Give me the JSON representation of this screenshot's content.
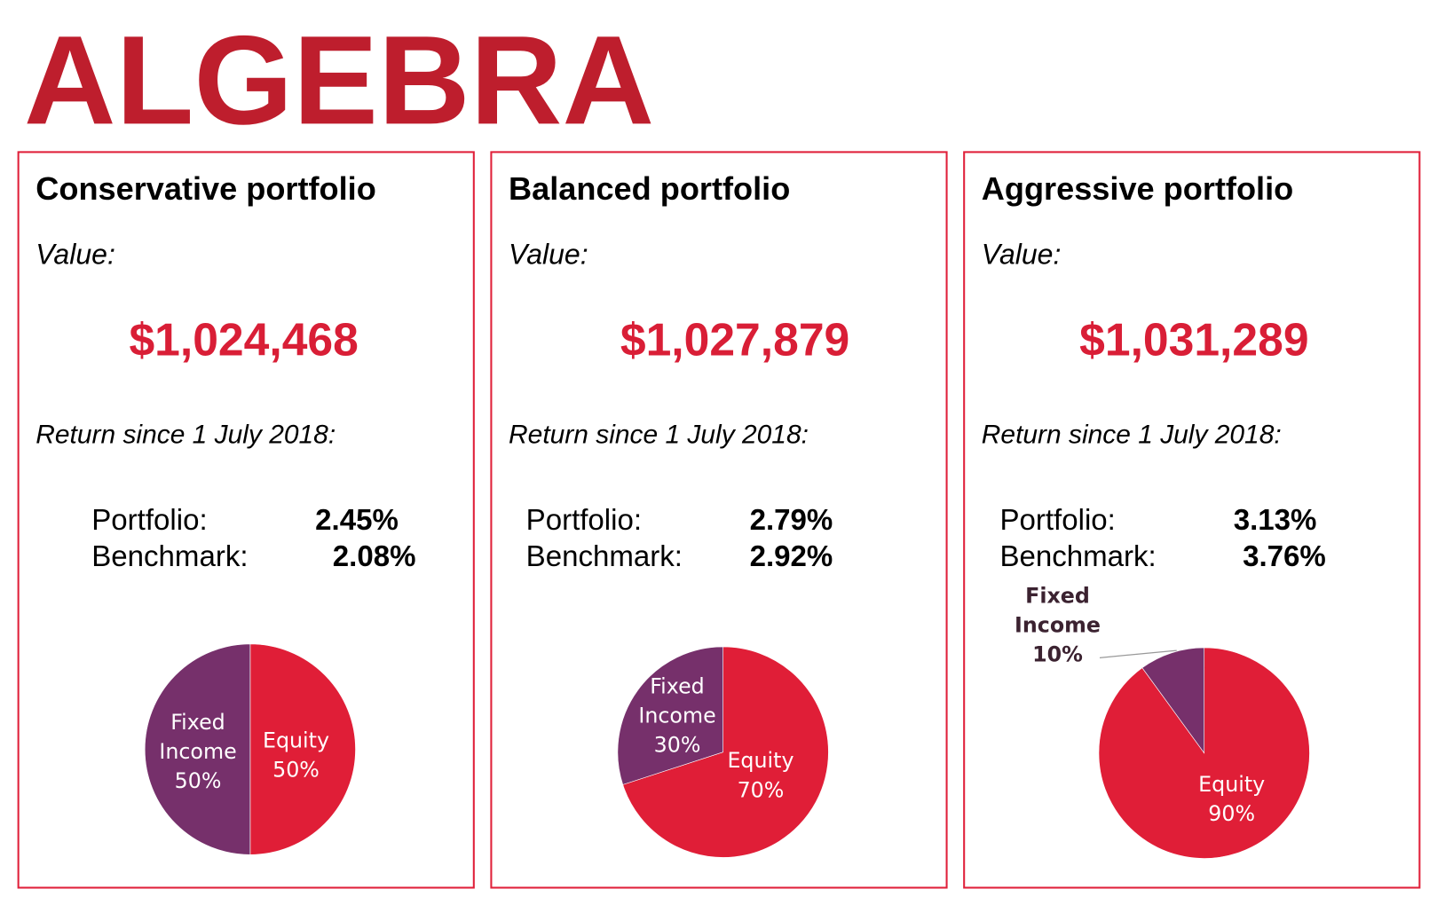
{
  "logo": {
    "text": "ALGEBRA",
    "color": "#BE1E2D"
  },
  "colors": {
    "equity": "#E01E37",
    "fixed_income": "#76306B",
    "border": "#E0203A",
    "amount": "#D91E36"
  },
  "portfolios": [
    {
      "title": "Conservative portfolio",
      "value_label": "Value:",
      "value": "$1,024,468",
      "return_label": "Return since 1 July 2018:",
      "portfolio_label": "Portfolio:",
      "portfolio_return": "2.45%",
      "benchmark_label": "Benchmark:",
      "benchmark_return": "2.08%"
    },
    {
      "title": "Balanced portfolio",
      "value_label": "Value:",
      "value": "$1,027,879",
      "return_label": "Return since 1 July 2018:",
      "portfolio_label": "Portfolio:",
      "portfolio_return": "2.79%",
      "benchmark_label": "Benchmark:",
      "benchmark_return": "2.92%"
    },
    {
      "title": "Aggressive portfolio",
      "value_label": "Value:",
      "value": "$1,031,289",
      "return_label": "Return since 1 July 2018:",
      "portfolio_label": "Portfolio:",
      "portfolio_return": "3.13%",
      "benchmark_label": "Benchmark:",
      "benchmark_return": "3.76%"
    }
  ],
  "chart_data": [
    {
      "type": "pie",
      "slices": [
        {
          "label": "Equity",
          "value": 50,
          "value_label": "50%"
        },
        {
          "label": "Fixed Income",
          "value": 50,
          "value_label": "50%"
        }
      ]
    },
    {
      "type": "pie",
      "slices": [
        {
          "label": "Equity",
          "value": 70,
          "value_label": "70%"
        },
        {
          "label": "Fixed Income",
          "value": 30,
          "value_label": "30%"
        }
      ]
    },
    {
      "type": "pie",
      "slices": [
        {
          "label": "Equity",
          "value": 90,
          "value_label": "90%"
        },
        {
          "label": "Fixed Income",
          "value": 10,
          "value_label": "10%"
        }
      ]
    }
  ]
}
